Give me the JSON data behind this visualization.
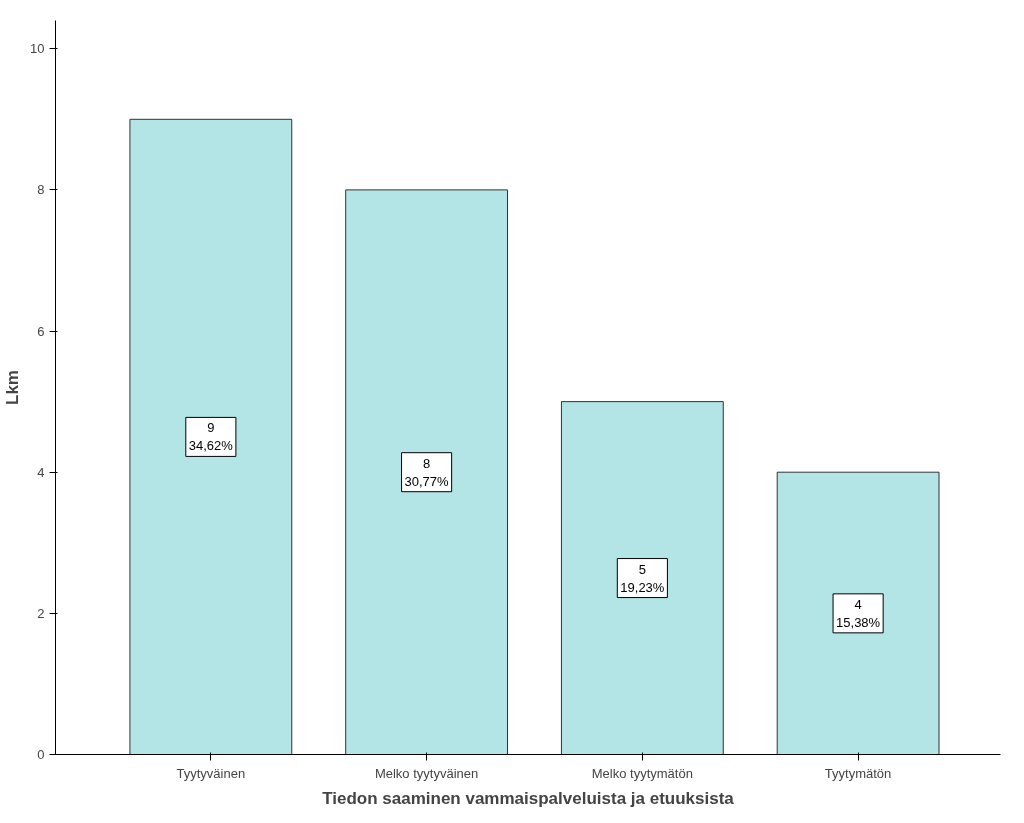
{
  "chart_data": {
    "type": "bar",
    "xlabel": "Tiedon saaminen vammaispalveluista ja etuuksista",
    "ylabel": "Lkm",
    "categories": [
      "Tyytyväinen",
      "Melko tyytyväinen",
      "Melko tyytymätön",
      "Tyytymätön"
    ],
    "values": [
      9,
      8,
      5,
      4
    ],
    "color": "#b3e4e6",
    "value_labels": [
      "9\n34,62%",
      "8\n30,77%",
      "5\n19,23%",
      "4\n15,38%"
    ],
    "ylim": [
      0,
      10.4
    ],
    "yticks": [
      0,
      2,
      4,
      6,
      8,
      10
    ],
    "grid": false
  }
}
